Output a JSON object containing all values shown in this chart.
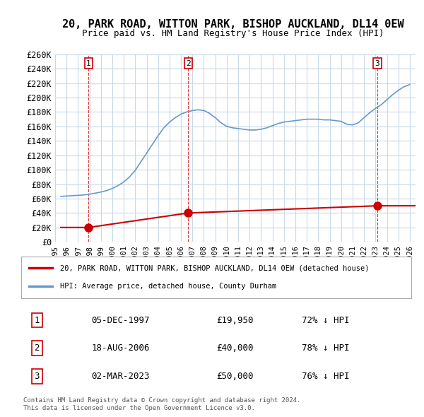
{
  "title": "20, PARK ROAD, WITTON PARK, BISHOP AUCKLAND, DL14 0EW",
  "subtitle": "Price paid vs. HM Land Registry's House Price Index (HPI)",
  "xlabel": "",
  "ylabel": "",
  "ylim": [
    0,
    260000
  ],
  "yticks": [
    0,
    20000,
    40000,
    60000,
    80000,
    100000,
    120000,
    140000,
    160000,
    180000,
    200000,
    220000,
    240000,
    260000
  ],
  "ytick_labels": [
    "£0",
    "£20K",
    "£40K",
    "£60K",
    "£80K",
    "£100K",
    "£120K",
    "£140K",
    "£160K",
    "£180K",
    "£200K",
    "£220K",
    "£240K",
    "£260K"
  ],
  "xlim_start": 1995.5,
  "xlim_end": 2026.5,
  "background_color": "#ffffff",
  "grid_color": "#c8d8e8",
  "sale_dates": [
    1997.92,
    2006.63,
    2023.17
  ],
  "sale_prices": [
    19950,
    40000,
    50000
  ],
  "sale_labels": [
    "1",
    "2",
    "3"
  ],
  "sale_date_strs": [
    "05-DEC-1997",
    "18-AUG-2006",
    "02-MAR-2023"
  ],
  "sale_price_strs": [
    "£19,950",
    "£40,000",
    "£50,000"
  ],
  "sale_hpi_strs": [
    "72% ↓ HPI",
    "78% ↓ HPI",
    "76% ↓ HPI"
  ],
  "sale_color": "#cc0000",
  "hpi_color": "#6699cc",
  "legend_sale_label": "20, PARK ROAD, WITTON PARK, BISHOP AUCKLAND, DL14 0EW (detached house)",
  "legend_hpi_label": "HPI: Average price, detached house, County Durham",
  "footer1": "Contains HM Land Registry data © Crown copyright and database right 2024.",
  "footer2": "This data is licensed under the Open Government Licence v3.0.",
  "hpi_x": [
    1995.5,
    1996.0,
    1996.5,
    1997.0,
    1997.5,
    1998.0,
    1998.5,
    1999.0,
    1999.5,
    2000.0,
    2000.5,
    2001.0,
    2001.5,
    2002.0,
    2002.5,
    2003.0,
    2003.5,
    2004.0,
    2004.5,
    2005.0,
    2005.5,
    2006.0,
    2006.5,
    2007.0,
    2007.5,
    2008.0,
    2008.5,
    2009.0,
    2009.5,
    2010.0,
    2010.5,
    2011.0,
    2011.5,
    2012.0,
    2012.5,
    2013.0,
    2013.5,
    2014.0,
    2014.5,
    2015.0,
    2015.5,
    2016.0,
    2016.5,
    2017.0,
    2017.5,
    2018.0,
    2018.5,
    2019.0,
    2019.5,
    2020.0,
    2020.5,
    2021.0,
    2021.5,
    2022.0,
    2022.5,
    2023.0,
    2023.5,
    2024.0,
    2024.5,
    2025.0,
    2025.5,
    2026.0
  ],
  "hpi_y": [
    63000,
    63500,
    64000,
    64500,
    65000,
    66000,
    67500,
    69000,
    71000,
    74000,
    78000,
    83000,
    90000,
    99000,
    111000,
    123000,
    135000,
    147000,
    158000,
    166000,
    172000,
    177000,
    180000,
    182000,
    183000,
    182000,
    178000,
    172000,
    165000,
    160000,
    158000,
    157000,
    156000,
    155000,
    155000,
    156000,
    158000,
    161000,
    164000,
    166000,
    167000,
    168000,
    169000,
    170000,
    170000,
    170000,
    169000,
    169000,
    168000,
    167000,
    163000,
    162000,
    165000,
    172000,
    179000,
    185000,
    190000,
    197000,
    204000,
    210000,
    215000,
    218000
  ],
  "sale_line_x": [
    1995.5,
    1997.92,
    2006.63,
    2023.17,
    2026.5
  ],
  "sale_line_y": [
    19950,
    19950,
    40000,
    50000,
    50000
  ]
}
